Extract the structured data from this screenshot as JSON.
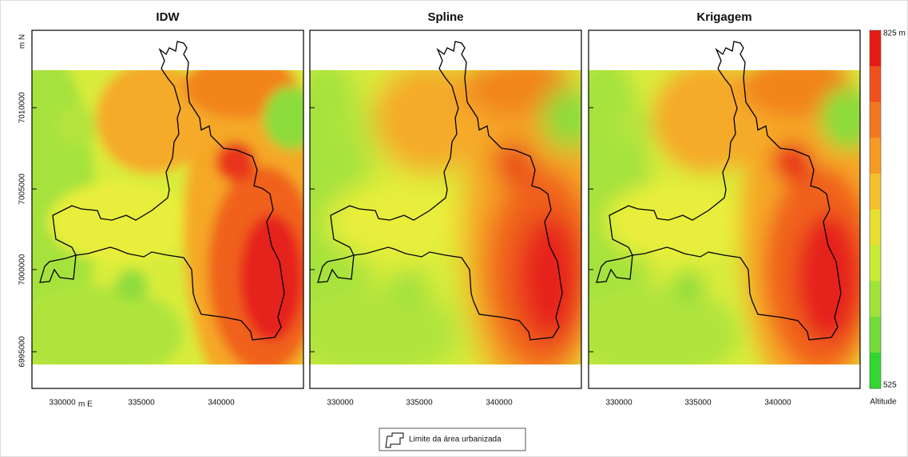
{
  "panels": [
    {
      "title": "IDW"
    },
    {
      "title": "Spline"
    },
    {
      "title": "Krigagem"
    }
  ],
  "x_axis": {
    "label": "m E",
    "ticks": [
      330000,
      335000,
      340000
    ]
  },
  "y_axis": {
    "label": "m N",
    "ticks": [
      7010000,
      7005000,
      7000000,
      6995000
    ]
  },
  "colorbar": {
    "title": "Altitude",
    "max_label": "825 m",
    "min_label": "525"
  },
  "legend": {
    "label": "Limite da área urbanizada"
  }
}
